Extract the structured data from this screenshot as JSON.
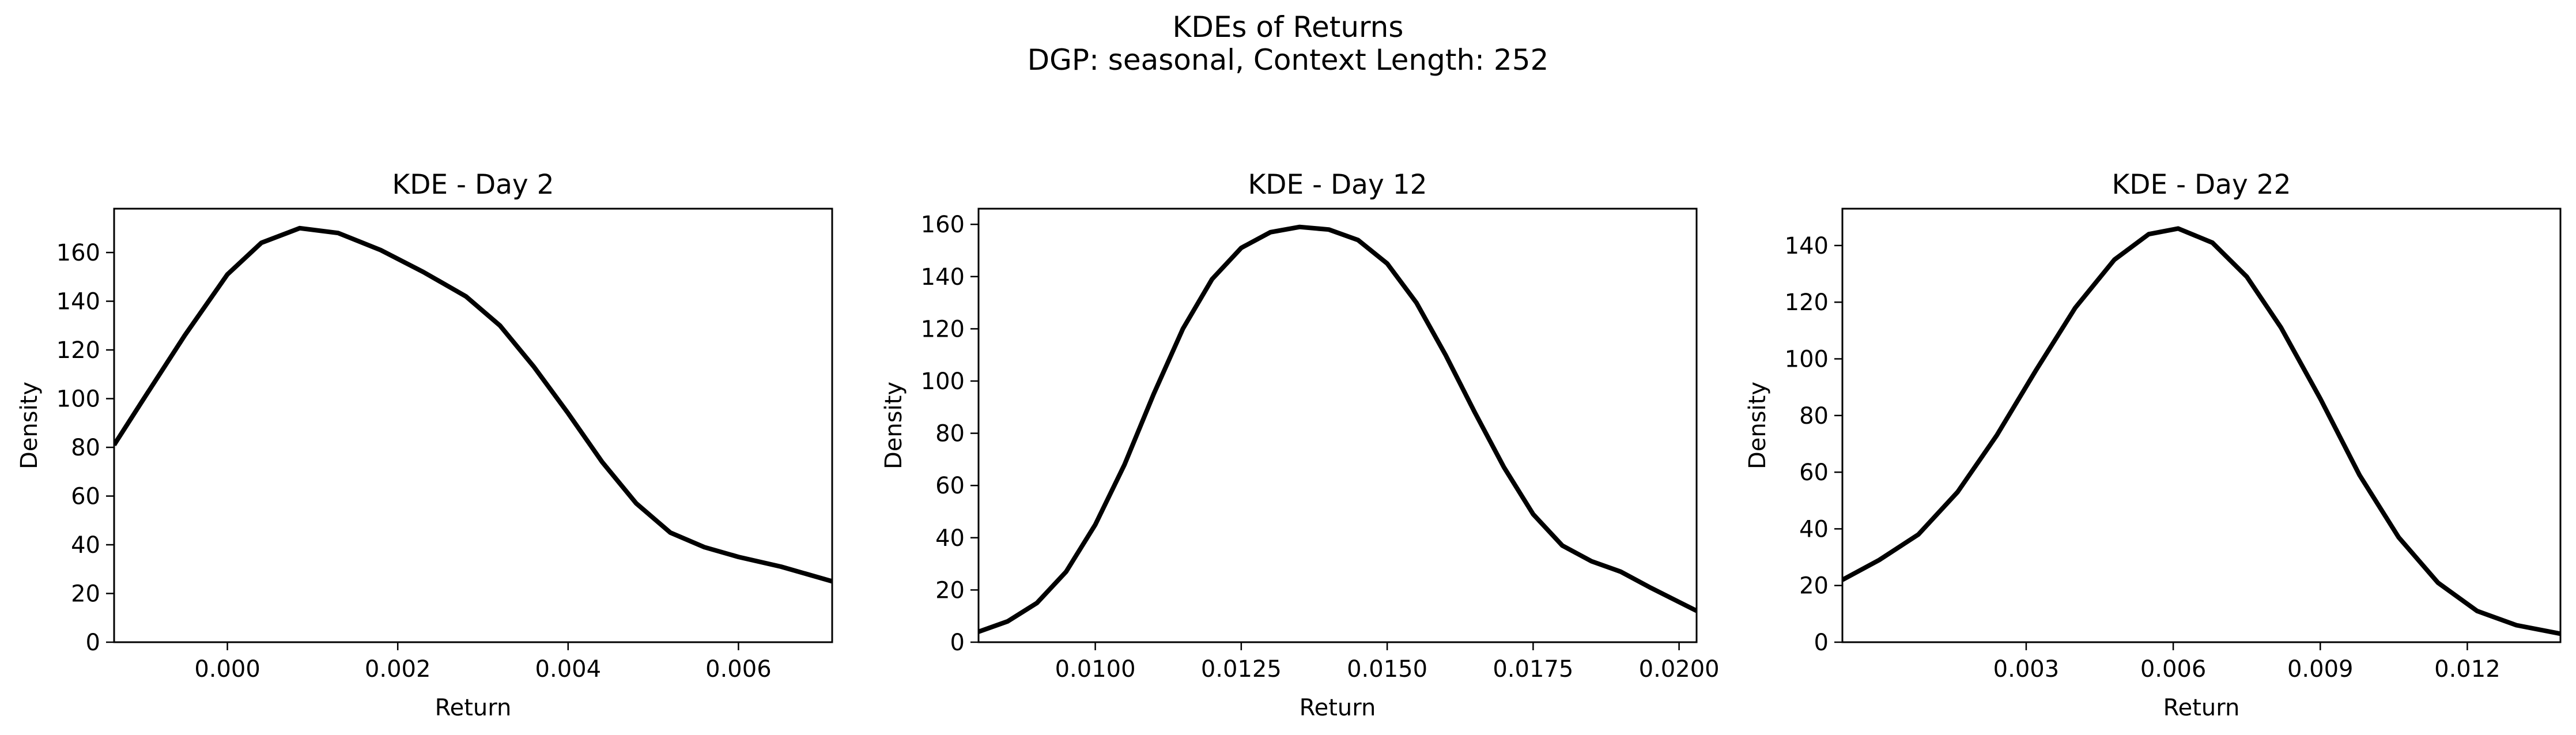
{
  "figure": {
    "title": "KDEs of Returns",
    "subtitle": "DGP: seasonal, Context Length: 252"
  },
  "colors": {
    "background": "#ffffff",
    "line": "#000000",
    "frame": "#000000"
  },
  "chart_data": [
    {
      "type": "line",
      "title": "KDE - Day 2",
      "xlabel": "Return",
      "ylabel": "Density",
      "xlim": [
        -0.00133,
        0.0071
      ],
      "ylim": [
        0,
        178
      ],
      "xticks": [
        0.0,
        0.002,
        0.004,
        0.006
      ],
      "xtick_labels": [
        "0.000",
        "0.002",
        "0.004",
        "0.006"
      ],
      "yticks": [
        0,
        20,
        40,
        60,
        80,
        100,
        120,
        140,
        160
      ],
      "ytick_labels": [
        "0",
        "20",
        "40",
        "60",
        "80",
        "100",
        "120",
        "140",
        "160"
      ],
      "grid": false,
      "series": [
        {
          "x": [
            -0.00133,
            -0.001,
            -0.0005,
            0.0,
            0.0004,
            0.00085,
            0.0013,
            0.0018,
            0.0023,
            0.0028,
            0.0032,
            0.0036,
            0.004,
            0.0044,
            0.0048,
            0.0052,
            0.0056,
            0.006,
            0.0065,
            0.0071
          ],
          "y": [
            81,
            99,
            126,
            151,
            164,
            170,
            168,
            161,
            152,
            142,
            130,
            113,
            94,
            74,
            57,
            45,
            39,
            35,
            31,
            25
          ]
        }
      ]
    },
    {
      "type": "line",
      "title": "KDE - Day 12",
      "xlabel": "Return",
      "ylabel": "Density",
      "xlim": [
        0.008,
        0.0203
      ],
      "ylim": [
        0,
        166
      ],
      "xticks": [
        0.01,
        0.0125,
        0.015,
        0.0175,
        0.02
      ],
      "xtick_labels": [
        "0.0100",
        "0.0125",
        "0.0150",
        "0.0175",
        "0.0200"
      ],
      "yticks": [
        0,
        20,
        40,
        60,
        80,
        100,
        120,
        140,
        160
      ],
      "ytick_labels": [
        "0",
        "20",
        "40",
        "60",
        "80",
        "100",
        "120",
        "140",
        "160"
      ],
      "grid": false,
      "series": [
        {
          "x": [
            0.008,
            0.0085,
            0.009,
            0.0095,
            0.01,
            0.0105,
            0.011,
            0.0115,
            0.012,
            0.0125,
            0.013,
            0.0135,
            0.014,
            0.0145,
            0.015,
            0.0155,
            0.016,
            0.0165,
            0.017,
            0.0175,
            0.018,
            0.0185,
            0.019,
            0.0195,
            0.0203
          ],
          "y": [
            4,
            8,
            15,
            27,
            45,
            68,
            95,
            120,
            139,
            151,
            157,
            159,
            158,
            154,
            145,
            130,
            110,
            88,
            67,
            49,
            37,
            31,
            27,
            21,
            12
          ]
        }
      ]
    },
    {
      "type": "line",
      "title": "KDE - Day 22",
      "xlabel": "Return",
      "ylabel": "Density",
      "xlim": [
        -0.00075,
        0.0139
      ],
      "ylim": [
        0,
        153
      ],
      "xticks": [
        0.003,
        0.006,
        0.009,
        0.012
      ],
      "xtick_labels": [
        "0.003",
        "0.006",
        "0.009",
        "0.012"
      ],
      "yticks": [
        0,
        20,
        40,
        60,
        80,
        100,
        120,
        140
      ],
      "ytick_labels": [
        "0",
        "20",
        "40",
        "60",
        "80",
        "100",
        "120",
        "140"
      ],
      "grid": false,
      "series": [
        {
          "x": [
            -0.00075,
            0.0,
            0.0008,
            0.0016,
            0.0024,
            0.0032,
            0.004,
            0.0048,
            0.0055,
            0.0061,
            0.0068,
            0.0075,
            0.0082,
            0.009,
            0.0098,
            0.0106,
            0.0114,
            0.0122,
            0.013,
            0.0139
          ],
          "y": [
            22,
            29,
            38,
            53,
            73,
            96,
            118,
            135,
            144,
            146,
            141,
            129,
            111,
            86,
            59,
            37,
            21,
            11,
            6,
            3
          ]
        }
      ]
    }
  ]
}
